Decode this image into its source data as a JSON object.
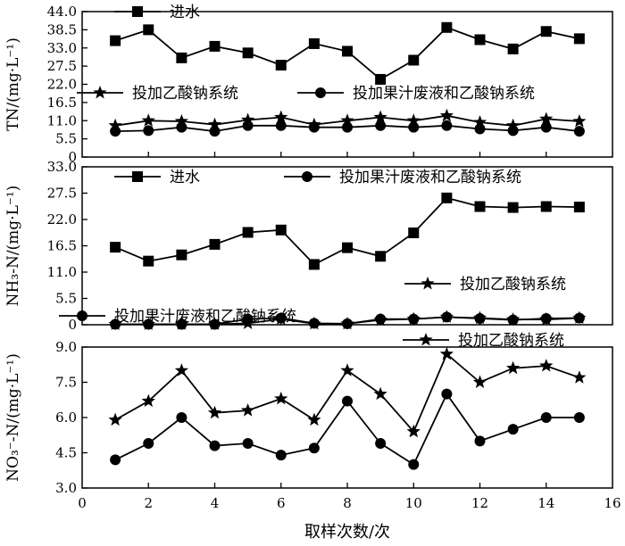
{
  "chart_data": [
    {
      "type": "line",
      "ylabel": "TN/(mg·L⁻¹)",
      "ylim": [
        0,
        44
      ],
      "yticks": [
        "44.0",
        "38.5",
        "33.0",
        "27.5",
        "22.0",
        "16.5",
        "11.0",
        "5.5",
        "0"
      ],
      "x": [
        1,
        2,
        3,
        4,
        5,
        6,
        7,
        8,
        9,
        10,
        11,
        12,
        13,
        14,
        15
      ],
      "series": [
        {
          "name": "进水",
          "marker": "square",
          "values": [
            35.2,
            38.5,
            30.0,
            33.5,
            31.5,
            27.8,
            34.3,
            32.0,
            23.5,
            29.3,
            39.2,
            35.5,
            32.7,
            38.0,
            35.8
          ]
        },
        {
          "name": "投加乙酸钠系统",
          "marker": "star",
          "values": [
            9.5,
            11.0,
            10.8,
            9.8,
            11.2,
            12.0,
            9.8,
            11.0,
            12.0,
            11.0,
            12.5,
            10.5,
            9.5,
            11.5,
            10.8
          ]
        },
        {
          "name": "投加果汁废液和乙酸钠系统",
          "marker": "circle",
          "values": [
            7.8,
            8.0,
            9.0,
            7.8,
            9.5,
            9.5,
            9.0,
            9.0,
            9.5,
            9.0,
            9.5,
            8.5,
            8.0,
            9.0,
            7.8
          ]
        }
      ]
    },
    {
      "type": "line",
      "ylabel": "NH₃-N/(mg·L⁻¹)",
      "ylim": [
        0,
        33
      ],
      "yticks": [
        "33.0",
        "27.5",
        "22.0",
        "16.5",
        "11.0",
        "5.5",
        "0"
      ],
      "x": [
        1,
        2,
        3,
        4,
        5,
        6,
        7,
        8,
        9,
        10,
        11,
        12,
        13,
        14,
        15
      ],
      "series": [
        {
          "name": "进水",
          "marker": "square",
          "values": [
            16.2,
            13.3,
            14.6,
            16.8,
            19.3,
            19.8,
            12.6,
            16.1,
            14.3,
            19.2,
            26.5,
            24.7,
            24.5,
            24.7,
            24.6
          ]
        },
        {
          "name": "投加果汁废液和乙酸钠系统",
          "marker": "circle",
          "values": [
            0.1,
            0.1,
            0.1,
            0.1,
            1.2,
            1.4,
            0.3,
            0.2,
            1.2,
            1.2,
            1.6,
            1.3,
            1.0,
            1.3,
            1.4
          ]
        },
        {
          "name": "投加乙酸钠系统",
          "marker": "star",
          "values": [
            0.1,
            0.1,
            0.1,
            0.1,
            0.3,
            1.2,
            0.2,
            0.2,
            1.0,
            1.2,
            1.6,
            1.4,
            1.1,
            1.1,
            1.4
          ]
        }
      ]
    },
    {
      "type": "line",
      "ylabel": "NO₃⁻-N/(mg·L⁻¹)",
      "ylim": [
        3.0,
        9.0
      ],
      "yticks": [
        "9.0",
        "7.5",
        "6.0",
        "4.5",
        "3.0"
      ],
      "xlabel": "取样次数/次",
      "xlim": [
        0,
        16
      ],
      "xticks": [
        "0",
        "2",
        "4",
        "6",
        "8",
        "10",
        "12",
        "14",
        "16"
      ],
      "x": [
        1,
        2,
        3,
        4,
        5,
        6,
        7,
        8,
        9,
        10,
        11,
        12,
        13,
        14,
        15
      ],
      "series": [
        {
          "name": "投加果汁废液和乙酸钠系统",
          "marker": "circle",
          "values": [
            4.2,
            4.9,
            6.0,
            4.8,
            4.9,
            4.4,
            4.7,
            6.7,
            4.9,
            4.0,
            7.0,
            5.0,
            5.5,
            6.0,
            6.0
          ]
        },
        {
          "name": "投加乙酸钠系统",
          "marker": "star",
          "values": [
            5.9,
            6.7,
            8.0,
            6.2,
            6.3,
            6.8,
            5.9,
            8.0,
            7.0,
            5.4,
            8.7,
            7.5,
            8.1,
            8.2,
            7.7
          ]
        }
      ]
    }
  ]
}
